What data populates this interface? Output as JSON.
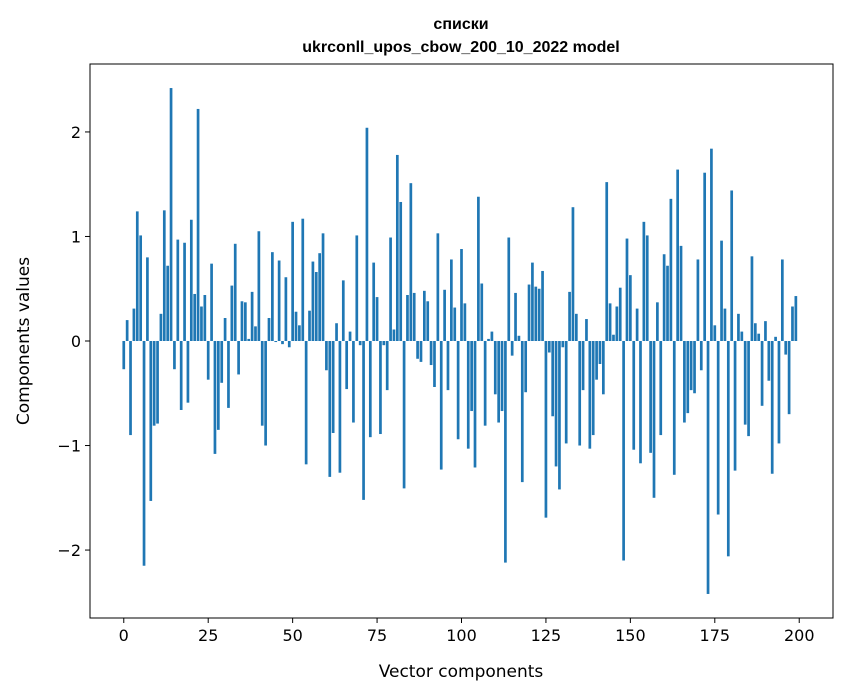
{
  "chart_data": {
    "type": "bar",
    "title": [
      "списки",
      "ukrconll_upos_cbow_200_10_2022 model"
    ],
    "xlabel": "Vector components",
    "ylabel": "Components values",
    "xlim": [
      -10,
      210
    ],
    "ylim": [
      -2.65,
      2.65
    ],
    "grid": false,
    "bar_color": "#1f77b4",
    "xticks": [
      0,
      25,
      50,
      75,
      100,
      125,
      150,
      175,
      200
    ],
    "xtick_labels": [
      "0",
      "25",
      "50",
      "75",
      "100",
      "125",
      "150",
      "175",
      "200"
    ],
    "yticks": [
      -2,
      -1,
      0,
      1,
      2
    ],
    "ytick_labels": [
      "−2",
      "−1",
      "0",
      "1",
      "2"
    ],
    "values": [
      -0.27,
      0.2,
      -0.9,
      0.31,
      1.24,
      1.01,
      -2.15,
      0.8,
      -1.53,
      -0.81,
      -0.79,
      0.26,
      1.25,
      0.72,
      2.42,
      -0.27,
      0.97,
      -0.66,
      0.94,
      -0.59,
      1.16,
      0.45,
      2.22,
      0.33,
      0.44,
      -0.37,
      0.74,
      -1.08,
      -0.85,
      -0.4,
      0.22,
      -0.64,
      0.53,
      0.93,
      -0.32,
      0.38,
      0.37,
      0.02,
      0.47,
      0.14,
      1.05,
      -0.81,
      -1.0,
      0.22,
      0.85,
      -0.01,
      0.77,
      -0.03,
      0.61,
      -0.06,
      1.14,
      0.28,
      0.15,
      1.17,
      -1.18,
      0.29,
      0.76,
      0.66,
      0.84,
      1.03,
      -0.28,
      -1.3,
      -0.88,
      0.17,
      -1.26,
      0.58,
      -0.46,
      0.09,
      -0.78,
      1.01,
      -0.04,
      -1.52,
      2.04,
      -0.92,
      0.75,
      0.42,
      -0.89,
      -0.04,
      -0.47,
      0.99,
      0.11,
      1.78,
      1.33,
      -1.41,
      0.44,
      1.51,
      0.46,
      -0.17,
      -0.2,
      0.48,
      0.38,
      -0.23,
      -0.44,
      1.03,
      -1.23,
      0.49,
      -0.47,
      0.78,
      0.32,
      -0.94,
      0.88,
      0.36,
      -1.03,
      -0.67,
      -1.21,
      1.38,
      0.55,
      -0.81,
      0.02,
      0.09,
      -0.51,
      -0.78,
      -0.67,
      -2.12,
      0.99,
      -0.14,
      0.46,
      0.05,
      -1.35,
      -0.49,
      0.54,
      0.75,
      0.52,
      0.5,
      0.67,
      -1.69,
      -0.11,
      -0.72,
      -1.2,
      -1.42,
      -0.06,
      -0.98,
      0.47,
      1.28,
      0.26,
      -1.0,
      -0.47,
      0.21,
      -1.03,
      -0.9,
      -0.37,
      -0.22,
      -0.51,
      1.52,
      0.36,
      0.06,
      0.33,
      0.51,
      -2.1,
      0.98,
      0.63,
      -1.04,
      0.31,
      -1.17,
      1.14,
      1.01,
      -1.07,
      -1.5,
      0.37,
      -0.9,
      0.83,
      0.72,
      1.36,
      -1.28,
      1.64,
      0.91,
      -0.78,
      -0.69,
      -0.47,
      -0.5,
      0.78,
      -0.28,
      1.61,
      -2.42,
      1.84,
      0.15,
      -1.66,
      0.96,
      0.31,
      -2.06,
      1.44,
      -1.24,
      0.26,
      0.09,
      -0.8,
      -0.91,
      0.81,
      0.17,
      0.07,
      -0.62,
      0.19,
      -0.38,
      -1.27,
      0.04,
      -0.98,
      0.78,
      -0.13,
      -0.7,
      0.33,
      0.43
    ]
  }
}
